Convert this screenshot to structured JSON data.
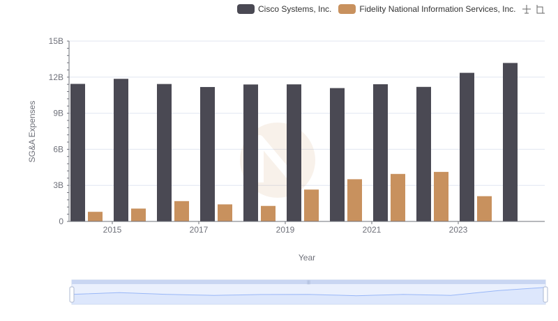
{
  "legend": {
    "items": [
      {
        "label": "Cisco Systems, Inc.",
        "color": "#4a4953"
      },
      {
        "label": "Fidelity National Information Services, Inc.",
        "color": "#c8915e"
      }
    ]
  },
  "toolbar": {
    "icons": [
      "zoom-icon",
      "restore-icon"
    ]
  },
  "chart_data": {
    "type": "bar",
    "xlabel": "Year",
    "ylabel": "SG&A Expenses",
    "categories": [
      "2014",
      "2015",
      "2016",
      "2017",
      "2018",
      "2019",
      "2020",
      "2021",
      "2022",
      "2023",
      "2024"
    ],
    "x_tick_labels": [
      "2015",
      "2017",
      "2019",
      "2021",
      "2023"
    ],
    "y_ticks": [
      "0",
      "3B",
      "6B",
      "9B",
      "12B",
      "15B"
    ],
    "ylim": [
      0,
      15000000000
    ],
    "grid": true,
    "legend_position": "top-right",
    "series": [
      {
        "name": "Cisco Systems, Inc.",
        "color": "#4a4953",
        "values": [
          11440000000,
          11860000000,
          11430000000,
          11180000000,
          11390000000,
          11400000000,
          11090000000,
          11410000000,
          11190000000,
          12360000000,
          13180000000
        ]
      },
      {
        "name": "Fidelity National Information Services, Inc.",
        "color": "#c8915e",
        "values": [
          800000000,
          1070000000,
          1690000000,
          1420000000,
          1290000000,
          2650000000,
          3510000000,
          3950000000,
          4120000000,
          2100000000,
          null
        ]
      }
    ],
    "data_zoom": {
      "start": 0,
      "end": 100
    }
  }
}
